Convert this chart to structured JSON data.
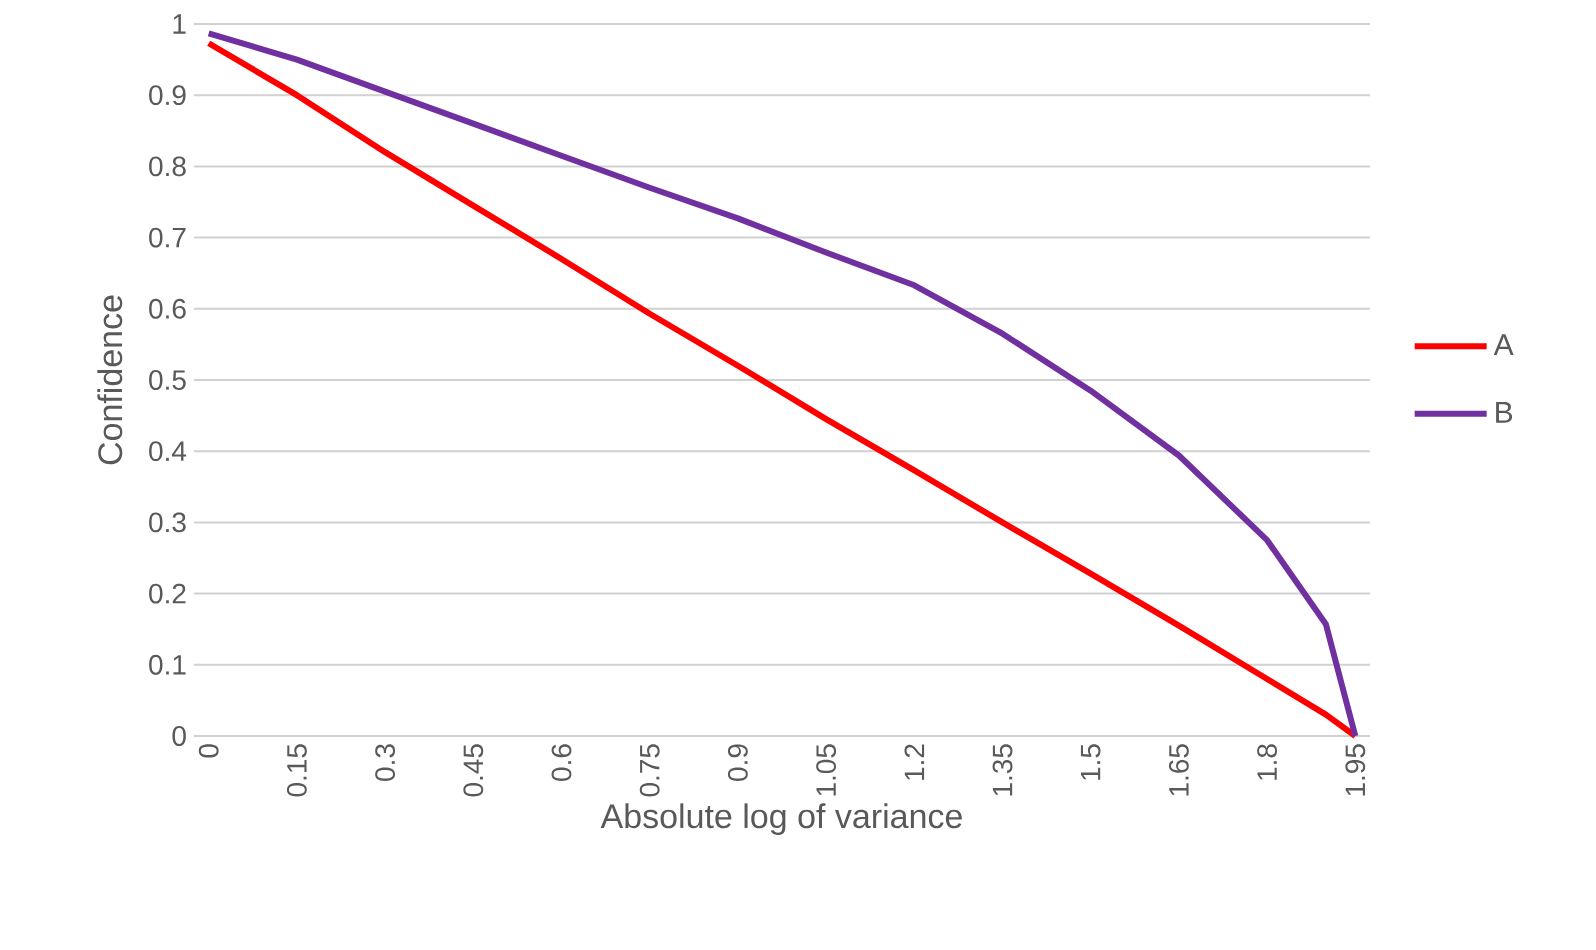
{
  "chart_data": {
    "type": "line",
    "xlabel": "Absolute log of variance",
    "ylabel": "Confidence",
    "x": [
      0,
      0.15,
      0.3,
      0.45,
      0.6,
      0.75,
      0.9,
      1.05,
      1.2,
      1.35,
      1.5,
      1.65,
      1.8,
      1.9,
      1.95
    ],
    "series": [
      {
        "name": "A",
        "color": "#ff0000",
        "values": [
          0.973,
          0.9,
          0.82,
          0.745,
          0.67,
          0.593,
          0.52,
          0.445,
          0.373,
          0.3,
          0.228,
          0.155,
          0.08,
          0.03,
          0
        ]
      },
      {
        "name": "B",
        "color": "#7030a0",
        "values": [
          0.987,
          0.95,
          0.905,
          0.86,
          0.815,
          0.77,
          0.727,
          0.679,
          0.633,
          0.565,
          0.485,
          0.394,
          0.275,
          0.157,
          0
        ]
      }
    ],
    "xlim": [
      -0.025,
      1.975
    ],
    "xticks": [
      0,
      0.15,
      0.3,
      0.45,
      0.6,
      0.75,
      0.9,
      1.05,
      1.2,
      1.35,
      1.5,
      1.65,
      1.8,
      1.95
    ],
    "ylim": [
      0,
      1
    ],
    "yticks": [
      0,
      0.1,
      0.2,
      0.3,
      0.4,
      0.5,
      0.6,
      0.7,
      0.8,
      0.9,
      1
    ],
    "grid": "y",
    "legend": "right",
    "marker": "none",
    "line_style": "solid"
  }
}
